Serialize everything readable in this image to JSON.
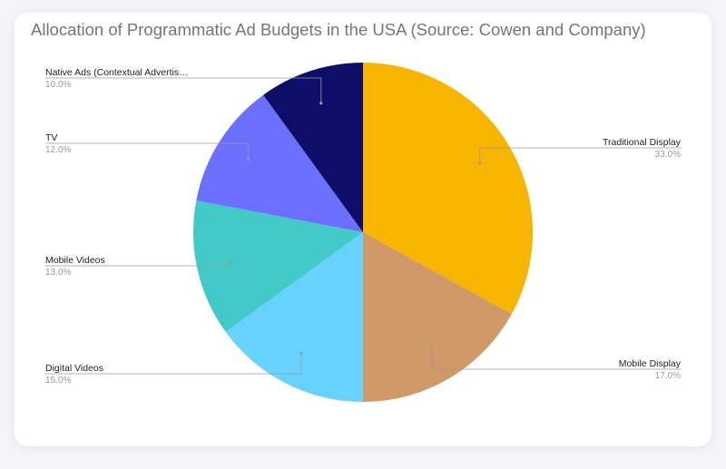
{
  "chart_data": {
    "type": "pie",
    "title": "Allocation of Programmatic Ad Budgets in the USA (Source: Cowen and Company)",
    "slices": [
      {
        "label": "Traditional Display",
        "value": 33.0,
        "pct_label": "33.0%",
        "color": "#f8b500"
      },
      {
        "label": "Mobile Display",
        "value": 17.0,
        "pct_label": "17.0%",
        "color": "#d09a68"
      },
      {
        "label": "Digital Videos",
        "value": 15.0,
        "pct_label": "15.0%",
        "color": "#67d2ff"
      },
      {
        "label": "Mobile Videos",
        "value": 13.0,
        "pct_label": "13.0%",
        "color": "#44c9c9"
      },
      {
        "label": "TV",
        "value": 12.0,
        "pct_label": "12.0%",
        "color": "#6b6ffd"
      },
      {
        "label": "Native Ads (Contextual Advertis…",
        "value": 10.0,
        "pct_label": "10.0%",
        "color": "#0c0e67"
      }
    ],
    "legend": "none",
    "label_placement": "outside-with-leader-lines"
  }
}
